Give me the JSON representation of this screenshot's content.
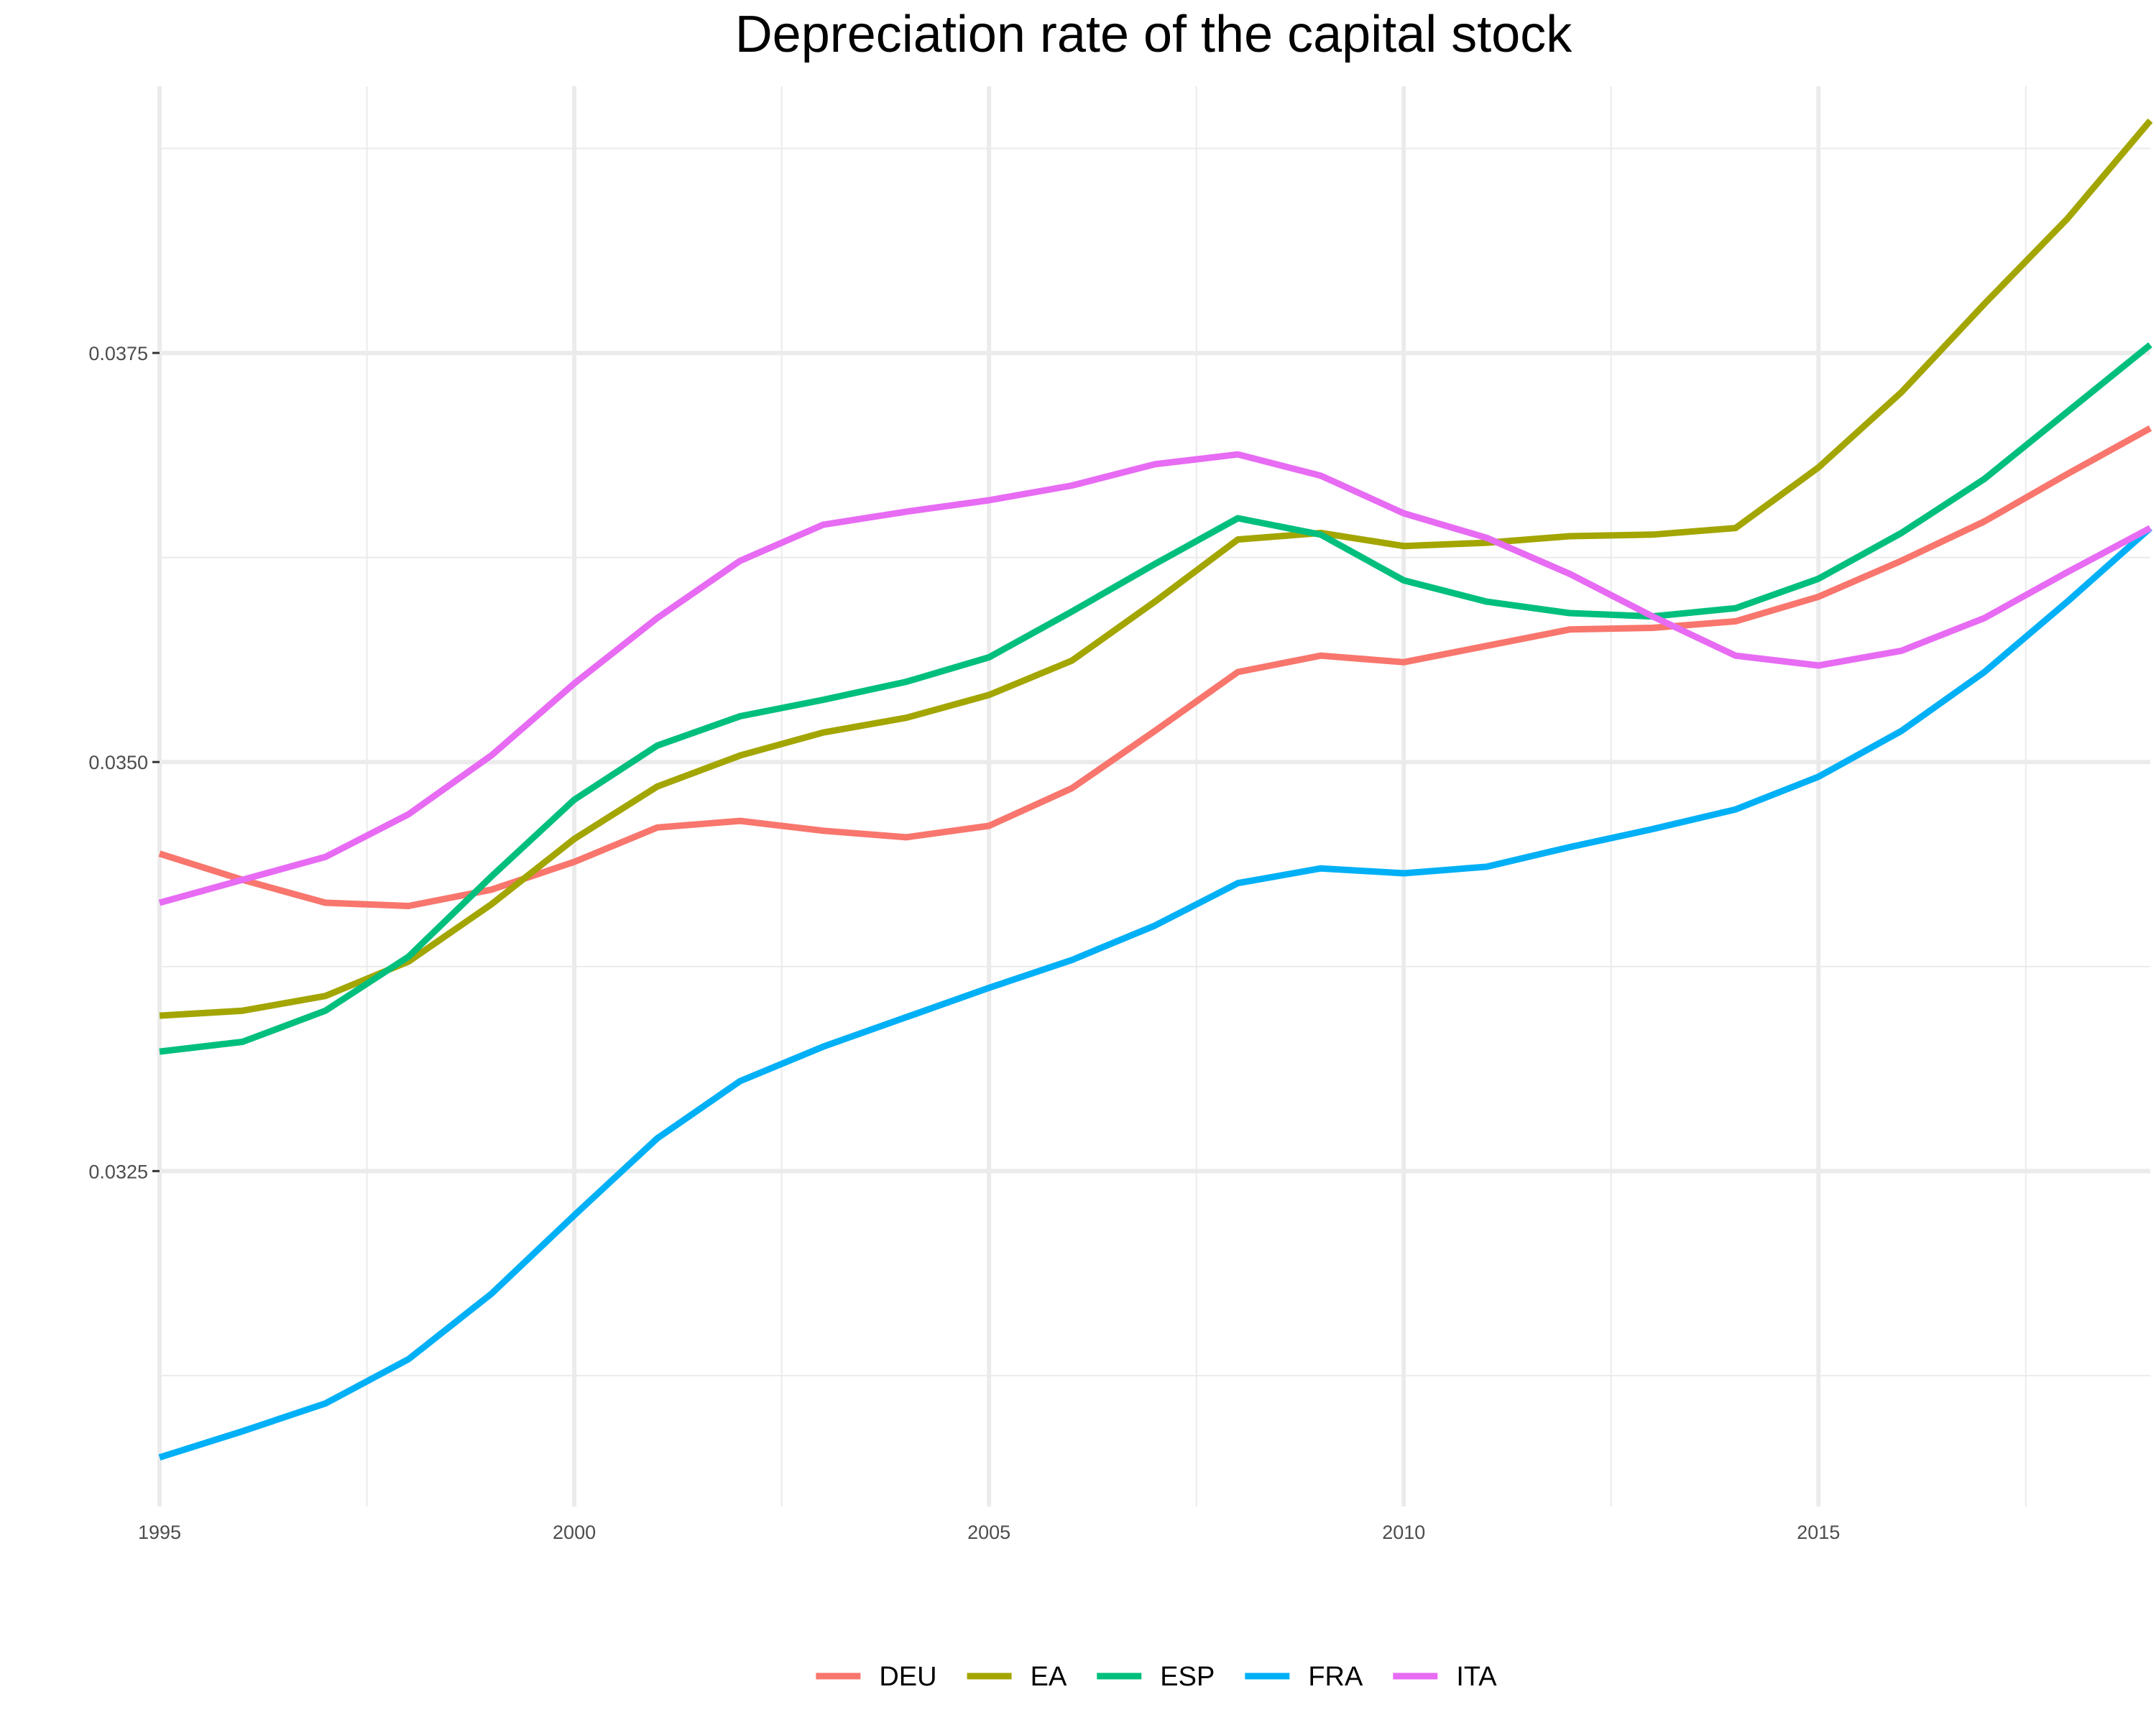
{
  "chart_data": {
    "type": "line",
    "title": "Depreciation rate of the capital stock",
    "xlabel": "",
    "ylabel": "",
    "x": [
      1995,
      1996,
      1997,
      1998,
      1999,
      2000,
      2001,
      2002,
      2003,
      2004,
      2005,
      2006,
      2007,
      2008,
      2009,
      2010,
      2011,
      2012,
      2013,
      2014,
      2015,
      2016,
      2017,
      2018,
      2019
    ],
    "xlim": [
      1995,
      2019
    ],
    "ylim": [
      0.03045,
      0.03913
    ],
    "x_ticks": [
      1995,
      2000,
      2005,
      2010,
      2015
    ],
    "x_tick_labels": [
      "1995",
      "2000",
      "2005",
      "2010",
      "2015"
    ],
    "x_minor_ticks": [
      1997.5,
      2002.5,
      2007.5,
      2012.5,
      2017.5
    ],
    "y_ticks": [
      0.0325,
      0.035,
      0.0375
    ],
    "y_tick_labels": [
      "0.0325",
      "0.0350",
      "0.0375"
    ],
    "y_minor_ticks": [
      0.03125,
      0.03375,
      0.03625,
      0.03875
    ],
    "grid": true,
    "legend_position": "bottom",
    "series": [
      {
        "name": "DEU",
        "color": "#F8766D",
        "values": [
          0.03444,
          0.03428,
          0.03414,
          0.03412,
          0.03422,
          0.03439,
          0.0346,
          0.03464,
          0.03458,
          0.03454,
          0.03461,
          0.03484,
          0.03519,
          0.03555,
          0.03565,
          0.03561,
          0.03571,
          0.03581,
          0.03582,
          0.03586,
          0.03601,
          0.03623,
          0.03647,
          0.03676,
          0.03704
        ]
      },
      {
        "name": "EA",
        "color": "#A3A500",
        "values": [
          0.03345,
          0.03348,
          0.03357,
          0.03378,
          0.03413,
          0.03453,
          0.03485,
          0.03504,
          0.03518,
          0.03527,
          0.03541,
          0.03562,
          0.03598,
          0.03636,
          0.0364,
          0.03632,
          0.03634,
          0.03638,
          0.03639,
          0.03643,
          0.0368,
          0.03726,
          0.0378,
          0.03832,
          0.03892
        ]
      },
      {
        "name": "ESP",
        "color": "#00BF7D",
        "values": [
          0.03323,
          0.03329,
          0.03348,
          0.03381,
          0.0343,
          0.03477,
          0.0351,
          0.03528,
          0.03538,
          0.03549,
          0.03564,
          0.03592,
          0.03621,
          0.03649,
          0.03639,
          0.03611,
          0.03598,
          0.03591,
          0.03589,
          0.03594,
          0.03612,
          0.0364,
          0.03673,
          0.03714,
          0.03755
        ]
      },
      {
        "name": "FRA",
        "color": "#00B0F6",
        "values": [
          0.03075,
          0.03091,
          0.03108,
          0.03135,
          0.03175,
          0.03223,
          0.0327,
          0.03305,
          0.03326,
          0.03344,
          0.03362,
          0.03379,
          0.034,
          0.03426,
          0.03435,
          0.03432,
          0.03436,
          0.03448,
          0.03459,
          0.03471,
          0.03491,
          0.03519,
          0.03555,
          0.03598,
          0.03643
        ]
      },
      {
        "name": "ITA",
        "color": "#E76BF3",
        "values": [
          0.03414,
          0.03428,
          0.03442,
          0.03468,
          0.03504,
          0.03548,
          0.03588,
          0.03623,
          0.03645,
          0.03653,
          0.0366,
          0.03669,
          0.03682,
          0.03688,
          0.03675,
          0.03652,
          0.03637,
          0.03615,
          0.03589,
          0.03565,
          0.03559,
          0.03568,
          0.03588,
          0.03616,
          0.03643
        ]
      }
    ]
  }
}
